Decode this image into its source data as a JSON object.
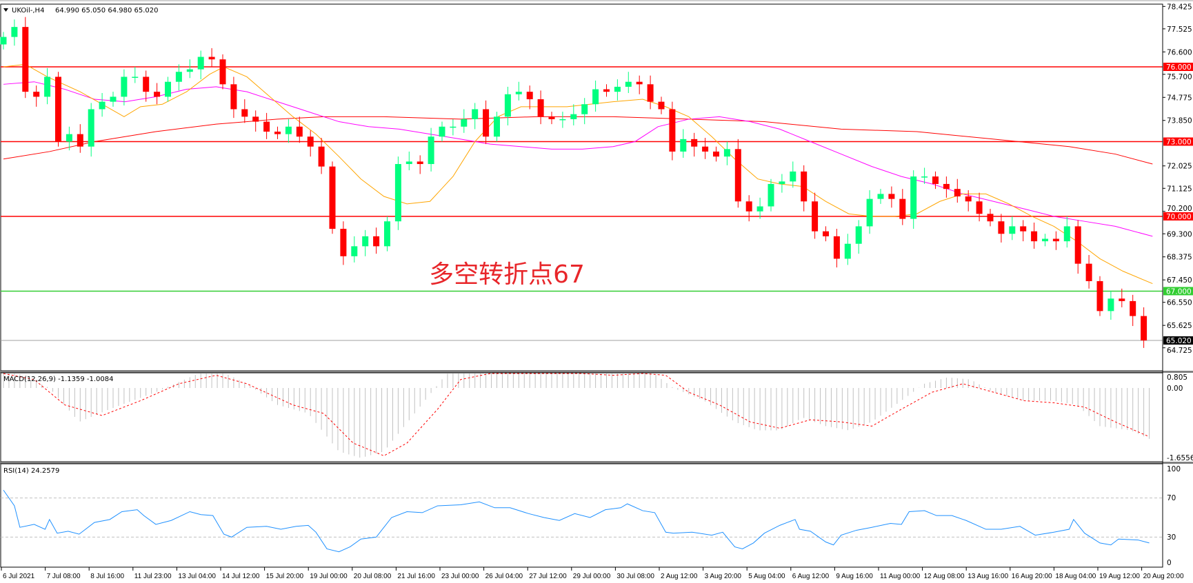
{
  "header": {
    "symbol": "UKOil-,H4",
    "ohlc_text": "64.990 65.050 64.980 65.020",
    "menu_icon": "triangle-down-icon"
  },
  "annotation": {
    "text": "多空转折点67",
    "color": "#e8262a"
  },
  "colors": {
    "bull": "#00ff7f",
    "bear": "#ff0000",
    "ma_fast": "#ffa500",
    "ma_mid": "#ff00ff",
    "ma_slow": "#ff0000",
    "macd_hist": "#c0c0c0",
    "macd_signal": "#ff0000",
    "rsi": "#1e90ff",
    "level_red": "#ff0000",
    "level_green": "#32cd32"
  },
  "price_axis": {
    "ticks": [
      "78.425",
      "77.525",
      "76.600",
      "75.700",
      "74.775",
      "73.850",
      "72.025",
      "71.125",
      "70.200",
      "69.300",
      "68.375",
      "67.450",
      "66.550",
      "65.625",
      "64.725"
    ],
    "levels": [
      {
        "value": 76.0,
        "label": "76.000",
        "color": "#ff0000"
      },
      {
        "value": 73.0,
        "label": "73.000",
        "color": "#ff0000"
      },
      {
        "value": 70.0,
        "label": "70.000",
        "color": "#ff0000"
      },
      {
        "value": 67.0,
        "label": "67.000",
        "color": "#32cd32"
      }
    ],
    "current": {
      "value": 65.02,
      "label": "65.020"
    }
  },
  "closes": [
    77.2,
    77.6,
    75.0,
    74.8,
    75.6,
    73.0,
    73.3,
    72.8,
    74.3,
    74.6,
    74.8,
    75.6,
    75.6,
    75.0,
    74.8,
    75.4,
    75.8,
    75.9,
    76.4,
    76.3,
    75.3,
    74.3,
    74.0,
    73.8,
    73.4,
    73.3,
    73.6,
    73.2,
    72.8,
    72.0,
    69.5,
    68.4,
    68.8,
    69.2,
    68.8,
    69.8,
    72.1,
    72.2,
    72.1,
    73.2,
    73.6,
    73.6,
    73.9,
    74.3,
    73.2,
    74.0,
    74.9,
    75.0,
    74.7,
    74.0,
    73.9,
    73.9,
    74.1,
    74.5,
    75.1,
    75.0,
    75.2,
    75.4,
    75.3,
    74.6,
    74.3,
    72.6,
    73.1,
    72.8,
    72.6,
    72.4,
    72.7,
    70.6,
    70.2,
    70.4,
    71.3,
    71.4,
    71.8,
    70.6,
    69.4,
    69.2,
    68.3,
    68.9,
    69.6,
    70.7,
    70.9,
    70.7,
    69.9,
    71.6,
    71.6,
    71.3,
    71.1,
    70.8,
    70.6,
    70.1,
    69.8,
    69.3,
    69.6,
    69.4,
    69.0,
    69.1,
    69.0,
    69.6,
    68.1,
    67.4,
    66.2,
    66.7,
    66.6,
    66.0,
    65.02
  ],
  "moving_averages": {
    "fast": [
      [
        0,
        76.0
      ],
      [
        2,
        76.1
      ],
      [
        4,
        75.6
      ],
      [
        7,
        75.0
      ],
      [
        9,
        74.5
      ],
      [
        11,
        74.0
      ],
      [
        12.5,
        74.4
      ],
      [
        14.5,
        74.5
      ],
      [
        16.7,
        75.0
      ],
      [
        18.8,
        75.7
      ],
      [
        20.1,
        76.0
      ],
      [
        22.2,
        75.6
      ],
      [
        24.3,
        74.8
      ],
      [
        26.4,
        74.0
      ],
      [
        28.5,
        73.3
      ],
      [
        30.6,
        72.4
      ],
      [
        32.6,
        71.5
      ],
      [
        34.7,
        70.8
      ],
      [
        36.8,
        70.5
      ],
      [
        38.9,
        70.6
      ],
      [
        41,
        71.6
      ],
      [
        43,
        73.0
      ],
      [
        45.1,
        74.0
      ],
      [
        47.2,
        74.4
      ],
      [
        49.3,
        74.4
      ],
      [
        51.4,
        74.4
      ],
      [
        53.5,
        74.5
      ],
      [
        55.6,
        74.6
      ],
      [
        58.3,
        74.7
      ],
      [
        60.4,
        74.4
      ],
      [
        62.5,
        74.0
      ],
      [
        64.6,
        73.2
      ],
      [
        66.7,
        72.3
      ],
      [
        68.8,
        71.5
      ],
      [
        70.8,
        71.3
      ],
      [
        72.9,
        71.2
      ],
      [
        75,
        70.6
      ],
      [
        77.1,
        70.1
      ],
      [
        79.2,
        70.0
      ],
      [
        81.3,
        70.0
      ],
      [
        83.3,
        70.1
      ],
      [
        85.4,
        70.6
      ],
      [
        87.5,
        70.9
      ],
      [
        89.6,
        70.9
      ],
      [
        91.7,
        70.5
      ],
      [
        93.8,
        70.0
      ],
      [
        95.8,
        69.6
      ],
      [
        97.9,
        69.0
      ],
      [
        100,
        68.3
      ],
      [
        102.1,
        67.8
      ],
      [
        104.8,
        67.3
      ]
    ],
    "mid": [
      [
        0,
        75.3
      ],
      [
        2.8,
        75.4
      ],
      [
        5.6,
        75.1
      ],
      [
        8.3,
        74.7
      ],
      [
        11.1,
        74.6
      ],
      [
        13.9,
        74.8
      ],
      [
        16.7,
        75.1
      ],
      [
        19.4,
        75.2
      ],
      [
        22.2,
        75.0
      ],
      [
        25,
        74.6
      ],
      [
        27.8,
        74.2
      ],
      [
        30.6,
        73.8
      ],
      [
        33.3,
        73.6
      ],
      [
        36.1,
        73.5
      ],
      [
        38.9,
        73.3
      ],
      [
        41.7,
        73.1
      ],
      [
        44.4,
        72.9
      ],
      [
        47.2,
        72.8
      ],
      [
        50,
        72.7
      ],
      [
        52.8,
        72.7
      ],
      [
        55.6,
        72.8
      ],
      [
        57.6,
        73.0
      ],
      [
        59.7,
        73.6
      ],
      [
        62.5,
        73.9
      ],
      [
        65.3,
        74.0
      ],
      [
        68.1,
        73.8
      ],
      [
        70.8,
        73.5
      ],
      [
        73.6,
        73.0
      ],
      [
        76.4,
        72.5
      ],
      [
        79.2,
        72.0
      ],
      [
        81.9,
        71.6
      ],
      [
        84.7,
        71.3
      ],
      [
        87.5,
        70.9
      ],
      [
        90.3,
        70.6
      ],
      [
        93.1,
        70.3
      ],
      [
        95.8,
        70.0
      ],
      [
        98.6,
        69.8
      ],
      [
        101.4,
        69.6
      ],
      [
        104.8,
        69.2
      ]
    ],
    "slow": [
      [
        0,
        72.3
      ],
      [
        4.2,
        72.6
      ],
      [
        8.3,
        73.0
      ],
      [
        13.9,
        73.4
      ],
      [
        19.4,
        73.7
      ],
      [
        25,
        73.9
      ],
      [
        29.2,
        74.0
      ],
      [
        34.7,
        74.0
      ],
      [
        41.7,
        73.9
      ],
      [
        48.6,
        74.0
      ],
      [
        55.6,
        74.0
      ],
      [
        62.5,
        73.9
      ],
      [
        69.4,
        73.8
      ],
      [
        76.4,
        73.5
      ],
      [
        83.3,
        73.4
      ],
      [
        90.3,
        73.1
      ],
      [
        97.2,
        72.8
      ],
      [
        101.4,
        72.5
      ],
      [
        104.8,
        72.1
      ]
    ]
  },
  "macd": {
    "label": "MACD(12,26,9) -1.1359 -1.0084",
    "axis": {
      "top": "0.805",
      "zero": "0.00",
      "bottom": "-1.6556"
    },
    "histogram": [
      [
        0,
        0.5
      ],
      [
        4.2,
        0
      ],
      [
        6.9,
        -0.8
      ],
      [
        9.7,
        -0.5
      ],
      [
        13.9,
        -0.1
      ],
      [
        17.4,
        0.3
      ],
      [
        19.4,
        0.45
      ],
      [
        22.2,
        0.1
      ],
      [
        25,
        -0.4
      ],
      [
        27.8,
        -0.6
      ],
      [
        30.6,
        -1.5
      ],
      [
        32.6,
        -1.65
      ],
      [
        34.7,
        -1.5
      ],
      [
        37.5,
        -0.6
      ],
      [
        40.3,
        0.3
      ],
      [
        43,
        0.8
      ],
      [
        45.8,
        0.85
      ],
      [
        48.6,
        0.85
      ],
      [
        51.4,
        0.5
      ],
      [
        54.2,
        0.4
      ],
      [
        56.9,
        0.5
      ],
      [
        59,
        0.4
      ],
      [
        61.1,
        0
      ],
      [
        63.9,
        -0.3
      ],
      [
        66.7,
        -0.8
      ],
      [
        68.8,
        -1.0
      ],
      [
        70.8,
        -1.0
      ],
      [
        72.9,
        -0.7
      ],
      [
        75,
        -0.9
      ],
      [
        77.1,
        -1.0
      ],
      [
        79.2,
        -0.8
      ],
      [
        81.9,
        -0.3
      ],
      [
        84,
        0.1
      ],
      [
        86.1,
        0.25
      ],
      [
        88.2,
        0.2
      ],
      [
        90.3,
        -0.1
      ],
      [
        93.1,
        -0.3
      ],
      [
        95.8,
        -0.3
      ],
      [
        97.9,
        -0.4
      ],
      [
        100,
        -0.9
      ],
      [
        102.8,
        -1.0
      ],
      [
        104.5,
        -1.2
      ]
    ],
    "signal": [
      [
        0,
        0.5
      ],
      [
        2.8,
        0.2
      ],
      [
        5.6,
        -0.4
      ],
      [
        9,
        -0.65
      ],
      [
        12.5,
        -0.3
      ],
      [
        16,
        0.1
      ],
      [
        19.4,
        0.3
      ],
      [
        22.2,
        0.1
      ],
      [
        26.4,
        -0.4
      ],
      [
        29.2,
        -0.6
      ],
      [
        31.9,
        -1.3
      ],
      [
        34.7,
        -1.6
      ],
      [
        36.8,
        -1.3
      ],
      [
        39.6,
        -0.5
      ],
      [
        41.7,
        0.2
      ],
      [
        44.4,
        0.6
      ],
      [
        47.2,
        0.75
      ],
      [
        50,
        0.65
      ],
      [
        52.8,
        0.4
      ],
      [
        55.6,
        0.3
      ],
      [
        58.3,
        0.4
      ],
      [
        60.4,
        0.3
      ],
      [
        62.5,
        -0.1
      ],
      [
        65.3,
        -0.4
      ],
      [
        68.1,
        -0.8
      ],
      [
        70.8,
        -0.95
      ],
      [
        73.6,
        -0.75
      ],
      [
        76.4,
        -0.8
      ],
      [
        79.2,
        -0.9
      ],
      [
        81.9,
        -0.5
      ],
      [
        84.7,
        -0.1
      ],
      [
        87.5,
        0.1
      ],
      [
        90.3,
        -0.1
      ],
      [
        93.1,
        -0.3
      ],
      [
        95.8,
        -0.35
      ],
      [
        98.6,
        -0.45
      ],
      [
        101.4,
        -0.8
      ],
      [
        104.5,
        -1.15
      ]
    ]
  },
  "rsi": {
    "label": "RSI(14) 24.2579",
    "axis": [
      "100",
      "70",
      "30",
      "0"
    ],
    "levels": [
      70,
      30
    ],
    "points": [
      [
        0,
        78
      ],
      [
        1,
        62
      ],
      [
        1.5,
        40
      ],
      [
        2.8,
        43
      ],
      [
        3.8,
        38
      ],
      [
        4.2,
        48
      ],
      [
        4.9,
        34
      ],
      [
        5.9,
        36
      ],
      [
        6.9,
        33
      ],
      [
        8.3,
        45
      ],
      [
        9.7,
        48
      ],
      [
        10.8,
        56
      ],
      [
        12.2,
        58
      ],
      [
        12.8,
        52
      ],
      [
        13.9,
        43
      ],
      [
        15.3,
        47
      ],
      [
        17,
        56
      ],
      [
        18,
        53
      ],
      [
        19.1,
        52
      ],
      [
        20.1,
        33
      ],
      [
        20.8,
        30
      ],
      [
        22.2,
        40
      ],
      [
        24,
        41
      ],
      [
        25.3,
        38
      ],
      [
        26.7,
        41
      ],
      [
        27.8,
        42
      ],
      [
        28.5,
        35
      ],
      [
        29.5,
        18
      ],
      [
        30.6,
        15
      ],
      [
        31.6,
        20
      ],
      [
        32.6,
        28
      ],
      [
        34,
        30
      ],
      [
        35.4,
        50
      ],
      [
        36.8,
        56
      ],
      [
        38.2,
        55
      ],
      [
        39.6,
        62
      ],
      [
        41.7,
        63
      ],
      [
        43.4,
        66
      ],
      [
        44.8,
        60
      ],
      [
        46.2,
        60
      ],
      [
        47.9,
        54
      ],
      [
        49.3,
        50
      ],
      [
        50.7,
        47
      ],
      [
        52.1,
        54
      ],
      [
        53.5,
        50
      ],
      [
        54.9,
        58
      ],
      [
        56.3,
        60
      ],
      [
        56.9,
        64
      ],
      [
        58.3,
        57
      ],
      [
        59.4,
        55
      ],
      [
        60.4,
        35
      ],
      [
        61.1,
        34
      ],
      [
        62.8,
        35
      ],
      [
        64.6,
        32
      ],
      [
        65.6,
        35
      ],
      [
        66.7,
        20
      ],
      [
        67.4,
        18
      ],
      [
        68.4,
        24
      ],
      [
        69.4,
        34
      ],
      [
        70.8,
        42
      ],
      [
        72.2,
        48
      ],
      [
        72.6,
        38
      ],
      [
        73.6,
        36
      ],
      [
        75,
        25
      ],
      [
        75.7,
        22
      ],
      [
        76.4,
        32
      ],
      [
        77.8,
        37
      ],
      [
        79.2,
        40
      ],
      [
        80.9,
        44
      ],
      [
        81.9,
        43
      ],
      [
        82.6,
        56
      ],
      [
        84,
        57
      ],
      [
        85.1,
        52
      ],
      [
        86.5,
        52
      ],
      [
        87.8,
        47
      ],
      [
        89.6,
        38
      ],
      [
        91,
        38
      ],
      [
        92.7,
        41
      ],
      [
        94.1,
        32
      ],
      [
        95.8,
        35
      ],
      [
        97.2,
        38
      ],
      [
        97.6,
        48
      ],
      [
        98.6,
        34
      ],
      [
        100,
        24
      ],
      [
        101,
        22
      ],
      [
        101.7,
        28
      ],
      [
        103.5,
        27
      ],
      [
        104.5,
        24
      ]
    ]
  },
  "time_axis": [
    "6 Jul 2021",
    "7 Jul 08:00",
    "8 Jul 16:00",
    "11 Jul 23:00",
    "13 Jul 04:00",
    "14 Jul 12:00",
    "15 Jul 20:00",
    "19 Jul 00:00",
    "20 Jul 08:00",
    "21 Jul 16:00",
    "23 Jul 00:00",
    "26 Jul 04:00",
    "27 Jul 12:00",
    "29 Jul 00:00",
    "30 Jul 08:00",
    "2 Aug 12:00",
    "3 Aug 20:00",
    "5 Aug 04:00",
    "6 Aug 12:00",
    "9 Aug 16:00",
    "11 Aug 00:00",
    "12 Aug 08:00",
    "13 Aug 16:00",
    "16 Aug 20:00",
    "18 Aug 04:00",
    "19 Aug 12:00",
    "20 Aug 20:00"
  ]
}
